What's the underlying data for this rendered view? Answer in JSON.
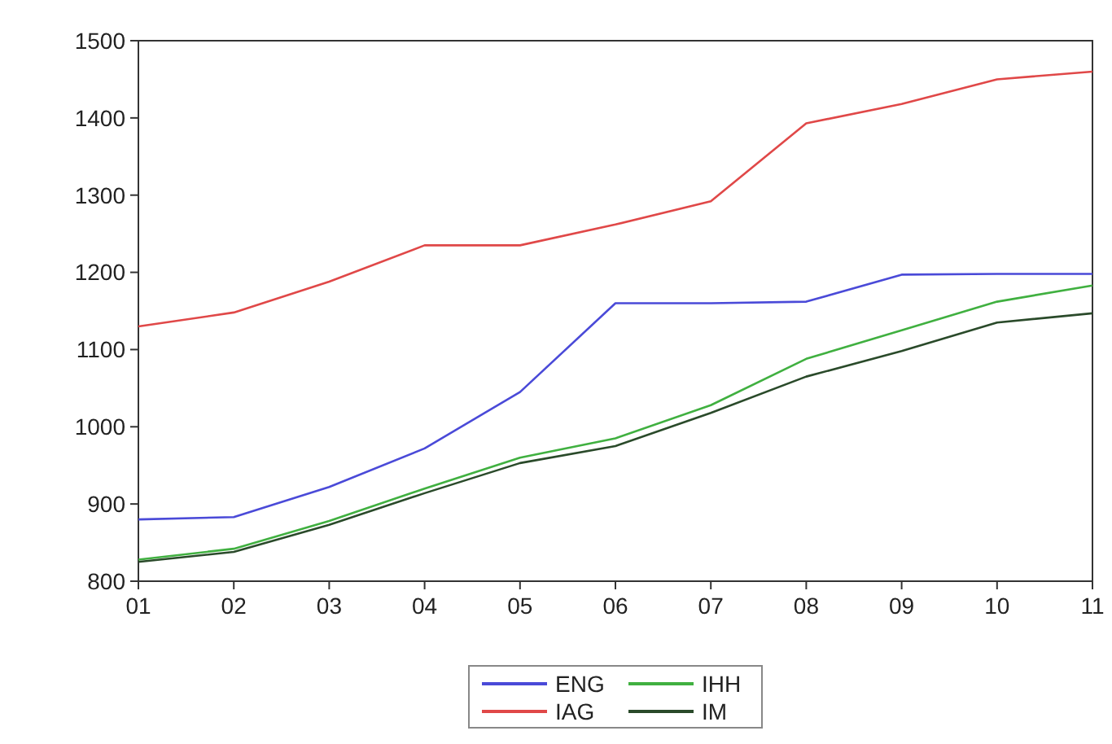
{
  "chart_data": {
    "type": "line",
    "categories": [
      "01",
      "02",
      "03",
      "04",
      "05",
      "06",
      "07",
      "08",
      "09",
      "10",
      "11"
    ],
    "ylim": [
      800,
      1500
    ],
    "yticks": [
      800,
      900,
      1000,
      1100,
      1200,
      1300,
      1400,
      1500
    ],
    "grid": false,
    "legend": "bottom",
    "marker": "none",
    "line_style": "solid",
    "series": [
      {
        "name": "ENG",
        "color": "#4a4ad8",
        "values": [
          880,
          883,
          922,
          972,
          1045,
          1160,
          1160,
          1162,
          1197,
          1198,
          1198
        ]
      },
      {
        "name": "IAG",
        "color": "#e04848",
        "values": [
          1130,
          1148,
          1188,
          1235,
          1235,
          1262,
          1292,
          1393,
          1418,
          1450,
          1460
        ]
      },
      {
        "name": "IHH",
        "color": "#40b040",
        "values": [
          828,
          842,
          878,
          920,
          960,
          985,
          1028,
          1088,
          1125,
          1162,
          1183
        ]
      },
      {
        "name": "IM",
        "color": "#2a4a2a",
        "values": [
          825,
          838,
          873,
          914,
          953,
          975,
          1018,
          1065,
          1098,
          1135,
          1147
        ]
      }
    ]
  }
}
